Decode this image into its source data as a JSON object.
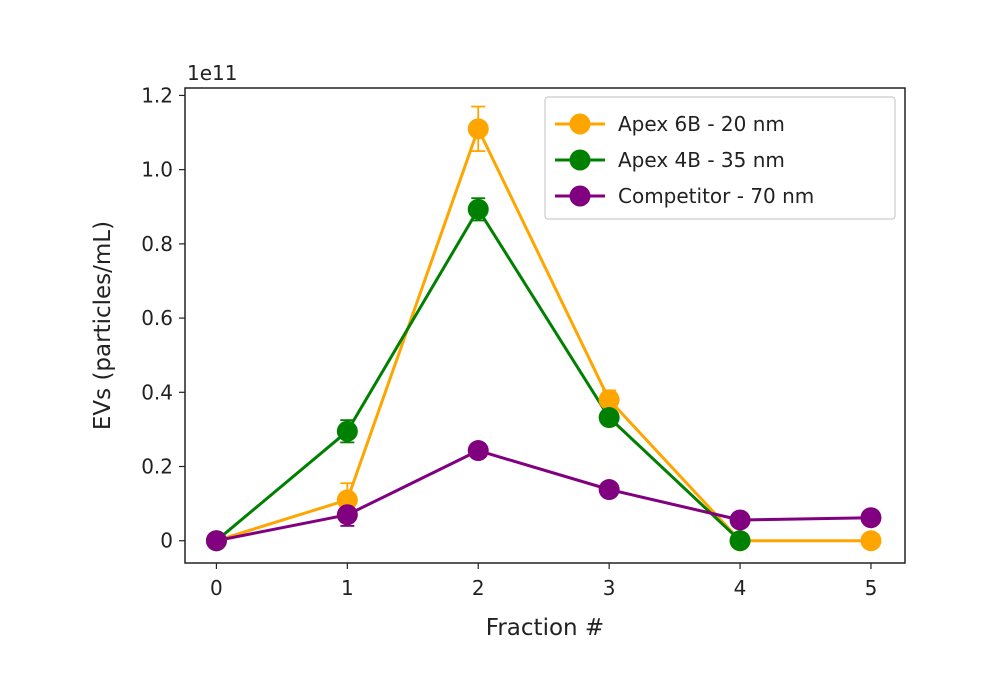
{
  "chart_data": {
    "type": "line",
    "xlabel": "Fraction #",
    "ylabel": "EVs (particles/mL)",
    "y_offset_label": "1e11",
    "x_ticks": [
      "0",
      "1",
      "2",
      "3",
      "4",
      "5"
    ],
    "y_ticks": [
      "0",
      "0.2",
      "0.4",
      "0.6",
      "0.8",
      "1.0",
      "1.2"
    ],
    "xlim": [
      -0.24,
      5.26
    ],
    "ylim": [
      -0.06,
      1.22
    ],
    "legend_position": "top-right",
    "series": [
      {
        "name": "Apex 6B - 20 nm",
        "color": "#FFA500",
        "x": [
          0,
          1,
          2,
          3,
          4,
          5
        ],
        "y": [
          0,
          0.11,
          1.11,
          0.38,
          0,
          0
        ],
        "error": [
          0,
          0.045,
          0.06,
          0.025,
          0,
          0
        ]
      },
      {
        "name": "Apex 4B - 35 nm",
        "color": "#008000",
        "x": [
          0,
          1,
          2,
          3,
          4
        ],
        "y": [
          0,
          0.295,
          0.893,
          0.332,
          0
        ],
        "error": [
          0,
          0.03,
          0.03,
          0.015,
          0
        ]
      },
      {
        "name": "Competitor - 70 nm",
        "color": "#800080",
        "x": [
          0,
          1,
          2,
          3,
          4,
          5
        ],
        "y": [
          0,
          0.07,
          0.243,
          0.138,
          0.056,
          0.062
        ],
        "error": [
          0,
          0.03,
          0.01,
          0.01,
          0.005,
          0.005
        ]
      }
    ]
  }
}
